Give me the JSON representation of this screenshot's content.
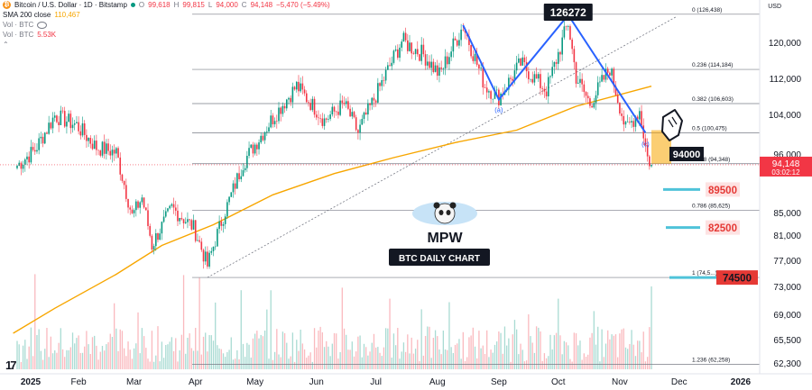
{
  "header": {
    "symbol_title": "Bitcoin / U.S. Dollar · 1D · Bitstamp",
    "ohlc": {
      "o_label": "O",
      "o_value": "99,618",
      "h_label": "H",
      "h_value": "99,815",
      "l_label": "L",
      "l_value": "94,000",
      "c_label": "C",
      "c_value": "94,148",
      "change": "−5,470 (−5.49%)"
    },
    "sma_label": "SMA 200 close",
    "sma_value": "110,467",
    "vol_label_1": "Vol · BTC",
    "vol_label_2": "Vol · BTC",
    "vol_value": "5.53K"
  },
  "currency": "USD",
  "colors": {
    "up": "#089981",
    "down": "#f23645",
    "sma": "#f7a600",
    "pattern": "#2962ff",
    "fib": "#787b86",
    "target": "#4fc3d9",
    "target_box_bg": "#fde2e2",
    "target_box_strong": "#e53935"
  },
  "chart_data": {
    "type": "candlestick",
    "title": "BTC DAILY CHART",
    "brand": "MPW",
    "x_ticks": [
      "2025",
      "Feb",
      "Mar",
      "Apr",
      "May",
      "Jun",
      "Jul",
      "Aug",
      "Sep",
      "Oct",
      "Nov",
      "Dec",
      "2026"
    ],
    "y_ticks": [
      "120,000",
      "112,000",
      "104,000",
      "96,000",
      "85,000",
      "81,000",
      "77,000",
      "73,000",
      "69,000",
      "65,500",
      "62,300"
    ],
    "current_price": "94,148",
    "countdown": "03:02:12",
    "sma200_value": "110,467",
    "fib_levels": [
      {
        "label": "0 (126,438)",
        "value": 126438
      },
      {
        "label": "0.236 (114,184)",
        "value": 114184
      },
      {
        "label": "0.382 (106,603)",
        "value": 106603
      },
      {
        "label": "0.5 (100,475)",
        "value": 100475
      },
      {
        "label": "0.618 (94,348)",
        "value": 94348
      },
      {
        "label": "0.786 (85,625)",
        "value": 85625
      },
      {
        "label": "1 (74,5...)",
        "value": 74508
      },
      {
        "label": "1.236 (62,258)",
        "value": 62258
      }
    ],
    "annotations": {
      "high_label": "126272",
      "low_label": "94000",
      "wave_a": "(a)",
      "wave_c": "(c)"
    },
    "targets": [
      {
        "label": "89500",
        "value": 89500
      },
      {
        "label": "82500",
        "value": 82500
      },
      {
        "label": "74500",
        "value": 74500
      }
    ],
    "price_path": [
      {
        "date": "2025-01-01",
        "price": 94000
      },
      {
        "date": "2025-01-10",
        "price": 97000
      },
      {
        "date": "2025-01-20",
        "price": 104000
      },
      {
        "date": "2025-01-31",
        "price": 102000
      },
      {
        "date": "2025-02-10",
        "price": 97500
      },
      {
        "date": "2025-02-20",
        "price": 96500
      },
      {
        "date": "2025-02-28",
        "price": 84500
      },
      {
        "date": "2025-03-05",
        "price": 88000
      },
      {
        "date": "2025-03-10",
        "price": 79500
      },
      {
        "date": "2025-03-20",
        "price": 86000
      },
      {
        "date": "2025-03-31",
        "price": 82500
      },
      {
        "date": "2025-04-07",
        "price": 76300
      },
      {
        "date": "2025-04-15",
        "price": 84500
      },
      {
        "date": "2025-04-25",
        "price": 94500
      },
      {
        "date": "2025-05-10",
        "price": 103500
      },
      {
        "date": "2025-05-22",
        "price": 110500
      },
      {
        "date": "2025-06-05",
        "price": 103000
      },
      {
        "date": "2025-06-15",
        "price": 106500
      },
      {
        "date": "2025-06-22",
        "price": 100500
      },
      {
        "date": "2025-06-30",
        "price": 107500
      },
      {
        "date": "2025-07-14",
        "price": 120500
      },
      {
        "date": "2025-07-25",
        "price": 117500
      },
      {
        "date": "2025-08-02",
        "price": 113000
      },
      {
        "date": "2025-08-14",
        "price": 124000
      },
      {
        "date": "2025-08-25",
        "price": 110500
      },
      {
        "date": "2025-09-01",
        "price": 108000
      },
      {
        "date": "2025-09-12",
        "price": 115500
      },
      {
        "date": "2025-09-25",
        "price": 109500
      },
      {
        "date": "2025-10-06",
        "price": 124500
      },
      {
        "date": "2025-10-10",
        "price": 112500
      },
      {
        "date": "2025-10-17",
        "price": 106500
      },
      {
        "date": "2025-10-27",
        "price": 114500
      },
      {
        "date": "2025-11-04",
        "price": 101000
      },
      {
        "date": "2025-11-11",
        "price": 105000
      },
      {
        "date": "2025-11-15",
        "price": 95500
      },
      {
        "date": "2025-11-17",
        "price": 94148
      }
    ],
    "sma200_path": [
      {
        "date": "2024-12-30",
        "price": 66500
      },
      {
        "date": "2025-01-20",
        "price": 70000
      },
      {
        "date": "2025-02-20",
        "price": 75000
      },
      {
        "date": "2025-03-15",
        "price": 79500
      },
      {
        "date": "2025-04-10",
        "price": 83000
      },
      {
        "date": "2025-05-10",
        "price": 88500
      },
      {
        "date": "2025-06-10",
        "price": 92500
      },
      {
        "date": "2025-07-10",
        "price": 95500
      },
      {
        "date": "2025-08-10",
        "price": 98500
      },
      {
        "date": "2025-09-10",
        "price": 101000
      },
      {
        "date": "2025-10-10",
        "price": 106000
      },
      {
        "date": "2025-11-17",
        "price": 110467
      }
    ],
    "pattern_path": [
      {
        "date": "2025-08-14",
        "price": 124000
      },
      {
        "date": "2025-09-01",
        "price": 107500
      },
      {
        "date": "2025-10-06",
        "price": 126272
      },
      {
        "date": "2025-11-14",
        "price": 100500
      }
    ],
    "trendline": [
      {
        "date": "2025-04-07",
        "price": 74500
      },
      {
        "date": "2025-11-30",
        "price": 126000
      }
    ]
  }
}
